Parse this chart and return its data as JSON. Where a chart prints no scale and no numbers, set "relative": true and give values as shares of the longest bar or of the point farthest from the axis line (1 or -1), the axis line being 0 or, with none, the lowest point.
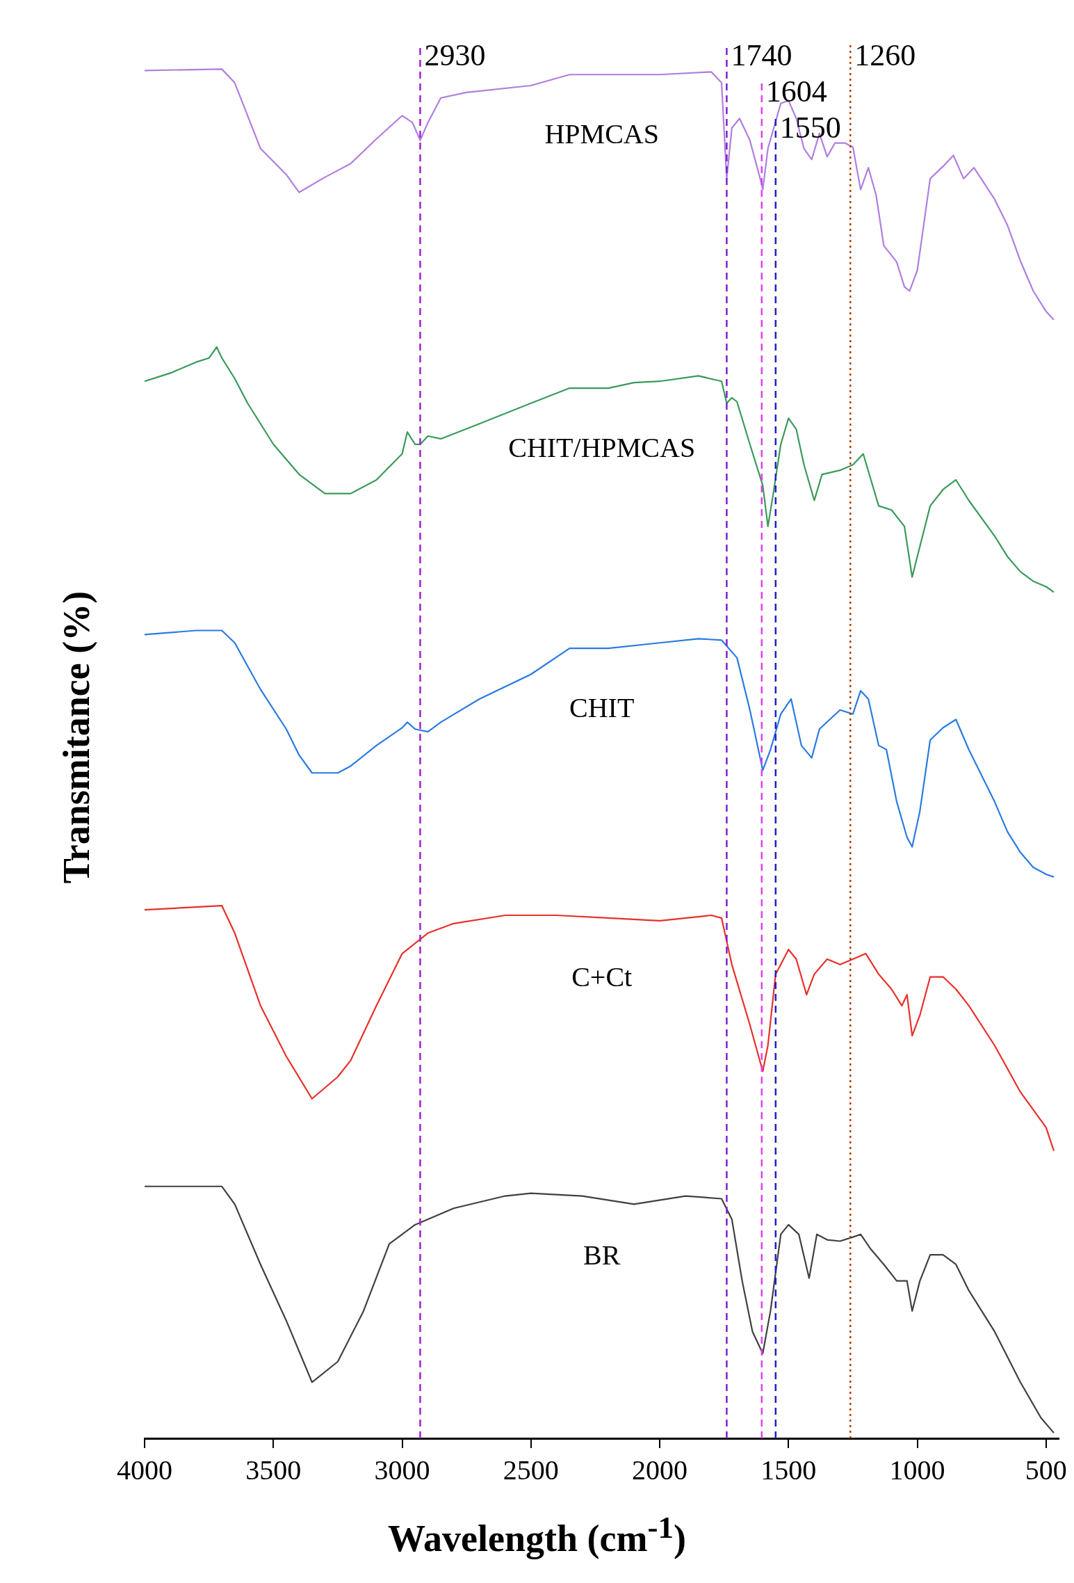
{
  "chart_data": {
    "type": "line",
    "xlabel": "Wavelength (cm$^{-1}$)",
    "ylabel": "Transmitance (%)",
    "relative": true,
    "legend": false,
    "grid": false,
    "xlim": [
      4000,
      450
    ],
    "xticks": [
      4000,
      3500,
      3000,
      2500,
      2000,
      1500,
      1000,
      500
    ],
    "series": [
      {
        "name": "HPMCAS",
        "color": "#b07ee0",
        "x": [
          4000,
          3700,
          3650,
          3550,
          3450,
          3400,
          3300,
          3200,
          3100,
          3000,
          2960,
          2930,
          2900,
          2850,
          2750,
          2500,
          2350,
          2000,
          1800,
          1760,
          1740,
          1720,
          1690,
          1650,
          1610,
          1600,
          1580,
          1530,
          1500,
          1470,
          1440,
          1410,
          1380,
          1350,
          1320,
          1280,
          1250,
          1220,
          1190,
          1160,
          1130,
          1100,
          1080,
          1050,
          1030,
          1000,
          950,
          900,
          860,
          820,
          780,
          700,
          650,
          600,
          550,
          500,
          470
        ],
        "values": [
          0.999,
          1.0,
          0.99,
          0.942,
          0.923,
          0.91,
          0.921,
          0.931,
          0.949,
          0.966,
          0.961,
          0.948,
          0.961,
          0.979,
          0.983,
          0.988,
          0.996,
          0.996,
          0.998,
          0.99,
          0.92,
          0.957,
          0.964,
          0.948,
          0.92,
          0.912,
          0.942,
          0.975,
          0.977,
          0.964,
          0.942,
          0.934,
          0.953,
          0.936,
          0.946,
          0.946,
          0.943,
          0.912,
          0.928,
          0.908,
          0.871,
          0.864,
          0.859,
          0.841,
          0.838,
          0.853,
          0.92,
          0.929,
          0.937,
          0.92,
          0.928,
          0.905,
          0.886,
          0.86,
          0.838,
          0.823,
          0.817
        ]
      },
      {
        "name": "CHIT/HPMCAS",
        "color": "#3a9a5a",
        "x": [
          4000,
          3900,
          3800,
          3750,
          3720,
          3700,
          3650,
          3600,
          3500,
          3400,
          3300,
          3200,
          3100,
          3000,
          2980,
          2950,
          2930,
          2900,
          2850,
          2700,
          2500,
          2350,
          2200,
          2100,
          2000,
          1850,
          1760,
          1740,
          1720,
          1700,
          1650,
          1600,
          1580,
          1560,
          1530,
          1500,
          1470,
          1440,
          1400,
          1370,
          1300,
          1250,
          1210,
          1180,
          1150,
          1100,
          1050,
          1020,
          1000,
          950,
          900,
          850,
          800,
          700,
          650,
          600,
          550,
          500,
          470
        ],
        "values": [
          0.772,
          0.778,
          0.786,
          0.789,
          0.797,
          0.789,
          0.774,
          0.756,
          0.726,
          0.704,
          0.69,
          0.69,
          0.7,
          0.719,
          0.735,
          0.726,
          0.726,
          0.732,
          0.73,
          0.741,
          0.756,
          0.767,
          0.767,
          0.771,
          0.772,
          0.776,
          0.772,
          0.756,
          0.76,
          0.757,
          0.726,
          0.696,
          0.666,
          0.689,
          0.726,
          0.745,
          0.737,
          0.711,
          0.685,
          0.704,
          0.707,
          0.711,
          0.719,
          0.7,
          0.681,
          0.678,
          0.666,
          0.629,
          0.644,
          0.681,
          0.693,
          0.7,
          0.685,
          0.659,
          0.644,
          0.633,
          0.626,
          0.622,
          0.618
        ]
      },
      {
        "name": "CHIT",
        "color": "#2a7be0",
        "x": [
          4000,
          3800,
          3700,
          3650,
          3550,
          3450,
          3400,
          3350,
          3250,
          3200,
          3100,
          3000,
          2980,
          2950,
          2900,
          2850,
          2700,
          2500,
          2350,
          2200,
          2000,
          1850,
          1760,
          1700,
          1650,
          1600,
          1570,
          1530,
          1490,
          1450,
          1410,
          1380,
          1300,
          1250,
          1220,
          1190,
          1150,
          1120,
          1080,
          1040,
          1020,
          990,
          950,
          900,
          850,
          800,
          700,
          650,
          600,
          550,
          500,
          470
        ],
        "values": [
          0.587,
          0.59,
          0.59,
          0.581,
          0.547,
          0.518,
          0.499,
          0.486,
          0.486,
          0.491,
          0.506,
          0.519,
          0.523,
          0.518,
          0.516,
          0.523,
          0.54,
          0.558,
          0.577,
          0.577,
          0.581,
          0.584,
          0.583,
          0.57,
          0.532,
          0.488,
          0.503,
          0.529,
          0.54,
          0.506,
          0.497,
          0.518,
          0.532,
          0.529,
          0.546,
          0.54,
          0.506,
          0.503,
          0.465,
          0.439,
          0.432,
          0.458,
          0.51,
          0.519,
          0.525,
          0.503,
          0.465,
          0.443,
          0.428,
          0.417,
          0.412,
          0.41
        ]
      },
      {
        "name": "C+Ct",
        "color": "#e8302a",
        "x": [
          4000,
          3700,
          3650,
          3550,
          3450,
          3350,
          3250,
          3200,
          3100,
          3000,
          2900,
          2800,
          2600,
          2400,
          2200,
          2000,
          1800,
          1760,
          1720,
          1650,
          1600,
          1580,
          1550,
          1500,
          1470,
          1430,
          1400,
          1350,
          1300,
          1250,
          1200,
          1150,
          1100,
          1060,
          1040,
          1020,
          990,
          950,
          900,
          850,
          800,
          700,
          600,
          500,
          470
        ],
        "values": [
          0.386,
          0.389,
          0.369,
          0.316,
          0.279,
          0.248,
          0.264,
          0.276,
          0.316,
          0.354,
          0.369,
          0.376,
          0.382,
          0.382,
          0.38,
          0.378,
          0.382,
          0.38,
          0.346,
          0.302,
          0.268,
          0.287,
          0.339,
          0.357,
          0.35,
          0.324,
          0.339,
          0.35,
          0.346,
          0.35,
          0.354,
          0.339,
          0.328,
          0.316,
          0.324,
          0.294,
          0.309,
          0.337,
          0.337,
          0.328,
          0.316,
          0.287,
          0.253,
          0.227,
          0.21
        ]
      },
      {
        "name": "BR",
        "color": "#404040",
        "x": [
          4000,
          3700,
          3650,
          3550,
          3450,
          3350,
          3250,
          3150,
          3050,
          2950,
          2800,
          2600,
          2500,
          2300,
          2100,
          1900,
          1760,
          1720,
          1680,
          1640,
          1600,
          1570,
          1530,
          1500,
          1460,
          1420,
          1390,
          1350,
          1300,
          1250,
          1220,
          1180,
          1130,
          1080,
          1040,
          1020,
          990,
          950,
          900,
          850,
          800,
          700,
          600,
          520,
          470
        ],
        "values": [
          0.184,
          0.184,
          0.171,
          0.127,
          0.086,
          0.041,
          0.056,
          0.093,
          0.142,
          0.156,
          0.168,
          0.177,
          0.179,
          0.177,
          0.171,
          0.177,
          0.175,
          0.16,
          0.115,
          0.078,
          0.062,
          0.093,
          0.149,
          0.156,
          0.149,
          0.117,
          0.149,
          0.145,
          0.144,
          0.147,
          0.149,
          0.138,
          0.127,
          0.115,
          0.115,
          0.093,
          0.115,
          0.134,
          0.134,
          0.127,
          0.108,
          0.078,
          0.041,
          0.015,
          0.004
        ]
      }
    ],
    "ref_lines": [
      {
        "axis": "x",
        "value": 2930,
        "label": "2930",
        "color": "#a020d0",
        "line_style": "dashed"
      },
      {
        "axis": "x",
        "value": 1740,
        "label": "1740",
        "color": "#8020d0",
        "line_style": "dashed"
      },
      {
        "axis": "x",
        "value": 1604,
        "label": "1604",
        "color": "#e040f0",
        "line_style": "dashed"
      },
      {
        "axis": "x",
        "value": 1550,
        "label": "1550",
        "color": "#2020c0",
        "line_style": "dashed"
      },
      {
        "axis": "x",
        "value": 1260,
        "label": "1260",
        "color": "#b04000",
        "line_style": "dotted"
      }
    ]
  }
}
